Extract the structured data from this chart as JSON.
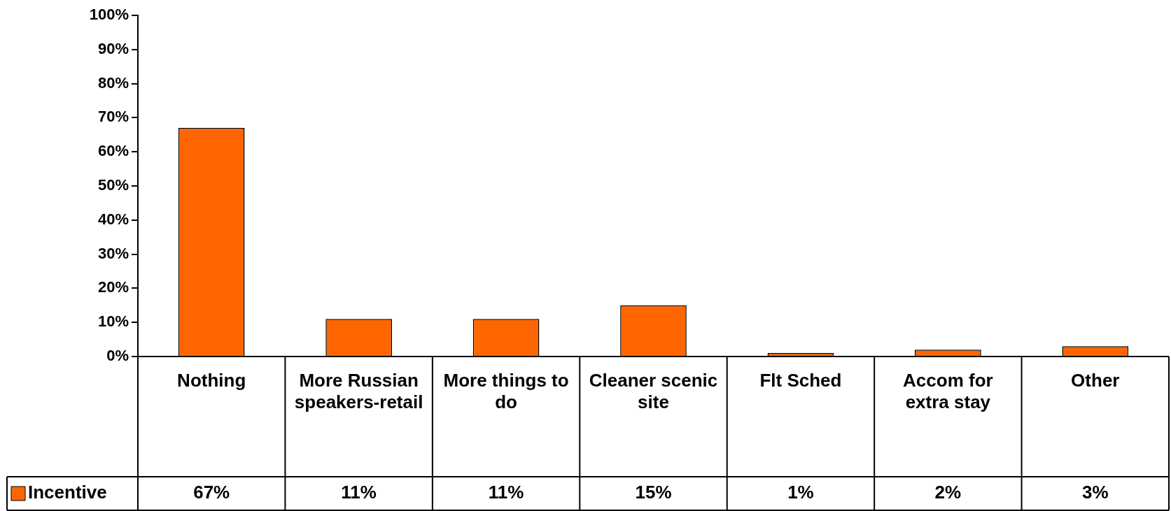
{
  "chart_data": {
    "type": "bar",
    "categories": [
      "Nothing",
      "More Russian speakers-retail",
      "More things to do",
      "Cleaner scenic site",
      "Flt Sched",
      "Accom for extra stay",
      "Other"
    ],
    "series": [
      {
        "name": "Incentive",
        "color": "#ff6600",
        "values": [
          67,
          11,
          11,
          15,
          1,
          2,
          3
        ],
        "value_labels": [
          "67%",
          "11%",
          "11%",
          "15%",
          "1%",
          "2%",
          "3%"
        ]
      }
    ],
    "ylim": [
      0,
      100
    ],
    "yticks": [
      {
        "value": 0,
        "label": "0%"
      },
      {
        "value": 10,
        "label": "10%"
      },
      {
        "value": 20,
        "label": "20%"
      },
      {
        "value": 30,
        "label": "30%"
      },
      {
        "value": 40,
        "label": "40%"
      },
      {
        "value": 50,
        "label": "50%"
      },
      {
        "value": 60,
        "label": "60%"
      },
      {
        "value": 70,
        "label": "70%"
      },
      {
        "value": 80,
        "label": "80%"
      },
      {
        "value": 90,
        "label": "90%"
      },
      {
        "value": 100,
        "label": "100%"
      }
    ],
    "grid": false,
    "legend": "bottom left"
  }
}
